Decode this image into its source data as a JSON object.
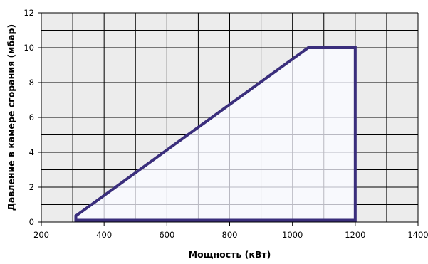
{
  "chart_data": {
    "type": "area",
    "title": "",
    "xlabel": "Мощность (кВт)",
    "ylabel": "Давление в камере сгорания (мбар)",
    "xlim": [
      200,
      1400
    ],
    "ylim": [
      0,
      12
    ],
    "x_major_ticks": [
      200,
      400,
      600,
      800,
      1000,
      1200,
      1400
    ],
    "x_minor_step": 100,
    "y_ticks": [
      0,
      2,
      4,
      6,
      8,
      10,
      12
    ],
    "y_minor_step": 1,
    "grid": true,
    "legend": "none",
    "series": [
      {
        "x": [
          310,
          310,
          1050,
          1200,
          1200
        ],
        "y": [
          0.1,
          0.35,
          10,
          10,
          0.1
        ],
        "line_color": "#3a2e7c",
        "fill_color": "#f8f9fd"
      }
    ],
    "colors": {
      "plot_background": "#ececec",
      "grid": "#000000",
      "region_grid": "#b9b9c2"
    }
  }
}
